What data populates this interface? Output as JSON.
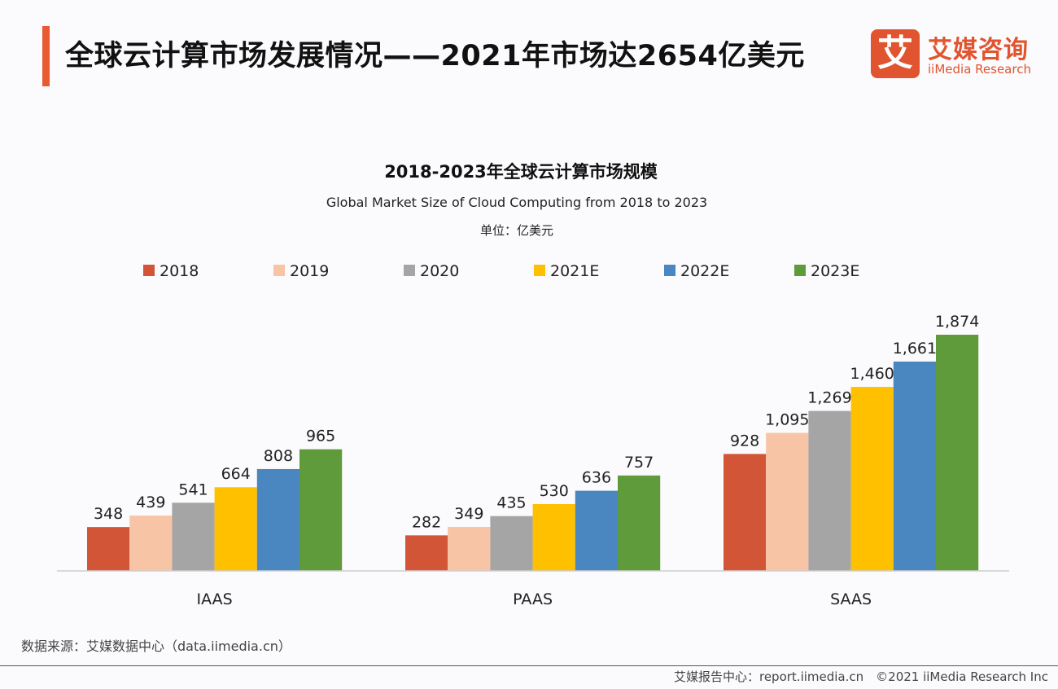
{
  "header": {
    "title": "全球云计算市场发展情况——2021年市场达2654亿美元",
    "logo_cn": "艾媒咨询",
    "logo_en": "iiMedia Research",
    "logo_mark": "艾",
    "accent_color": "#e85a32"
  },
  "chart_data": {
    "type": "bar",
    "title": "2018-2023年全球云计算市场规模",
    "subtitle": "Global Market Size of Cloud Computing from 2018 to 2023",
    "unit": "单位：亿美元",
    "categories": [
      "IAAS",
      "PAAS",
      "SAAS"
    ],
    "legend_position": "top",
    "grid": false,
    "ylim": [
      0,
      1874
    ],
    "series": [
      {
        "name": "2018",
        "color": "#d35537",
        "values": [
          348,
          282,
          928
        ],
        "labels": [
          "348",
          "282",
          "928"
        ]
      },
      {
        "name": "2019",
        "color": "#f8c4a6",
        "values": [
          439,
          349,
          1095
        ],
        "labels": [
          "439",
          "349",
          "1,095"
        ]
      },
      {
        "name": "2020",
        "color": "#a5a5a5",
        "values": [
          541,
          435,
          1269
        ],
        "labels": [
          "541",
          "435",
          "1,269"
        ]
      },
      {
        "name": "2021E",
        "color": "#ffc000",
        "values": [
          664,
          530,
          1460
        ],
        "labels": [
          "664",
          "530",
          "1,460"
        ]
      },
      {
        "name": "2022E",
        "color": "#4a86c0",
        "values": [
          808,
          636,
          1661
        ],
        "labels": [
          "808",
          "636",
          "1,661"
        ]
      },
      {
        "name": "2023E",
        "color": "#5f9a3b",
        "values": [
          965,
          757,
          1874
        ],
        "labels": [
          "965",
          "757",
          "1,874"
        ]
      }
    ]
  },
  "source": "数据来源：艾媒数据中心（data.iimedia.cn）",
  "footer": "艾媒报告中心：report.iimedia.cn　©2021  iiMedia Research  Inc"
}
